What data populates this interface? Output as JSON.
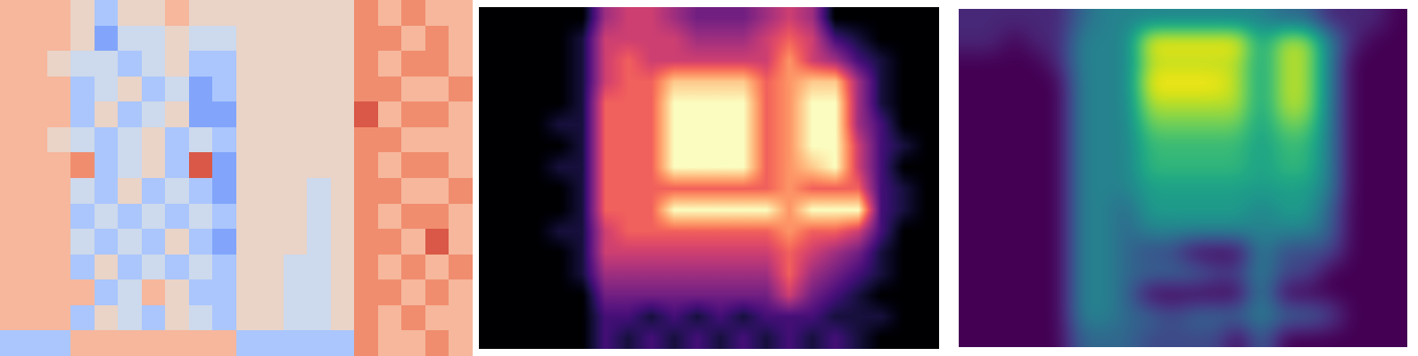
{
  "chart_data": [
    {
      "type": "heatmap",
      "color": "coolwarm",
      "tick_labels": false,
      "value_range": [
        0,
        9
      ],
      "cells": [
        [
          6,
          6,
          6,
          5,
          3,
          5,
          5,
          6,
          5,
          5,
          5,
          5,
          5,
          5,
          5,
          7,
          6,
          7,
          6,
          6
        ],
        [
          6,
          6,
          6,
          5,
          2,
          4,
          4,
          5,
          4,
          4,
          5,
          5,
          5,
          5,
          5,
          7,
          7,
          6,
          7,
          6
        ],
        [
          6,
          6,
          5,
          4,
          4,
          3,
          4,
          5,
          3,
          3,
          5,
          5,
          5,
          5,
          5,
          7,
          6,
          7,
          7,
          6
        ],
        [
          6,
          6,
          6,
          3,
          4,
          5,
          3,
          4,
          2,
          3,
          5,
          5,
          5,
          5,
          5,
          7,
          7,
          6,
          6,
          7
        ],
        [
          6,
          6,
          6,
          3,
          5,
          3,
          4,
          5,
          2,
          2,
          5,
          5,
          5,
          5,
          5,
          8,
          6,
          7,
          7,
          6
        ],
        [
          6,
          6,
          5,
          4,
          3,
          4,
          5,
          3,
          4,
          3,
          5,
          5,
          5,
          5,
          5,
          7,
          7,
          6,
          6,
          6
        ],
        [
          6,
          6,
          6,
          7,
          3,
          4,
          5,
          3,
          8,
          2,
          5,
          5,
          5,
          5,
          5,
          7,
          6,
          7,
          7,
          6
        ],
        [
          6,
          6,
          6,
          4,
          3,
          5,
          3,
          4,
          3,
          2,
          5,
          5,
          5,
          4,
          5,
          7,
          7,
          6,
          6,
          7
        ],
        [
          6,
          6,
          6,
          3,
          4,
          3,
          4,
          3,
          4,
          3,
          5,
          5,
          5,
          4,
          5,
          7,
          6,
          7,
          7,
          6
        ],
        [
          6,
          6,
          6,
          4,
          3,
          4,
          3,
          5,
          3,
          2,
          5,
          5,
          5,
          4,
          5,
          7,
          7,
          6,
          8,
          6
        ],
        [
          6,
          6,
          6,
          3,
          5,
          3,
          4,
          3,
          4,
          3,
          5,
          5,
          4,
          4,
          5,
          7,
          6,
          7,
          6,
          7
        ],
        [
          6,
          6,
          6,
          6,
          3,
          4,
          6,
          5,
          3,
          3,
          5,
          5,
          4,
          4,
          5,
          7,
          7,
          6,
          7,
          6
        ],
        [
          6,
          6,
          6,
          3,
          5,
          4,
          3,
          5,
          4,
          3,
          5,
          5,
          4,
          4,
          5,
          7,
          6,
          7,
          6,
          6
        ],
        [
          3,
          3,
          3,
          6,
          6,
          6,
          6,
          6,
          6,
          6,
          3,
          3,
          3,
          3,
          3,
          7,
          6,
          6,
          7,
          6
        ]
      ]
    },
    {
      "type": "heatmap",
      "color": "magma",
      "tick_labels": false,
      "value_range": [
        0,
        9
      ],
      "cells": [
        [
          0,
          0,
          0,
          0,
          0,
          4,
          5,
          5,
          4,
          3,
          3,
          3,
          4,
          5,
          4,
          0,
          0,
          0,
          0,
          0
        ],
        [
          0,
          0,
          0,
          0,
          1,
          5,
          5,
          5,
          5,
          4,
          4,
          4,
          5,
          6,
          5,
          2,
          1,
          0,
          0,
          0
        ],
        [
          0,
          0,
          0,
          0,
          1,
          5,
          6,
          5,
          5,
          5,
          5,
          5,
          5,
          7,
          5,
          4,
          2,
          1,
          0,
          0
        ],
        [
          0,
          0,
          0,
          0,
          1,
          5,
          6,
          6,
          8,
          8,
          8,
          8,
          6,
          7,
          8,
          8,
          4,
          1,
          0,
          0
        ],
        [
          0,
          0,
          0,
          0,
          1,
          6,
          6,
          6,
          9,
          9,
          9,
          9,
          6,
          7,
          9,
          9,
          4,
          1,
          0,
          0
        ],
        [
          0,
          0,
          0,
          1,
          1,
          6,
          6,
          6,
          9,
          9,
          9,
          9,
          6,
          7,
          9,
          9,
          4,
          2,
          0,
          0
        ],
        [
          0,
          0,
          0,
          0,
          1,
          6,
          6,
          6,
          9,
          9,
          9,
          9,
          6,
          7,
          9,
          9,
          5,
          2,
          1,
          0
        ],
        [
          0,
          0,
          0,
          1,
          1,
          6,
          6,
          6,
          9,
          9,
          9,
          9,
          6,
          7,
          8,
          9,
          5,
          2,
          0,
          0
        ],
        [
          0,
          0,
          0,
          0,
          1,
          6,
          6,
          6,
          6,
          6,
          6,
          6,
          6,
          7,
          6,
          6,
          6,
          2,
          1,
          0
        ],
        [
          0,
          0,
          0,
          0,
          1,
          6,
          6,
          6,
          9,
          9,
          9,
          9,
          9,
          7,
          9,
          9,
          9,
          2,
          1,
          0
        ],
        [
          0,
          0,
          0,
          1,
          1,
          5,
          6,
          6,
          6,
          6,
          6,
          6,
          6,
          7,
          6,
          6,
          5,
          2,
          0,
          0
        ],
        [
          0,
          0,
          0,
          0,
          1,
          5,
          5,
          5,
          5,
          5,
          5,
          5,
          5,
          6,
          5,
          4,
          3,
          1,
          0,
          0
        ],
        [
          0,
          0,
          0,
          0,
          1,
          4,
          4,
          4,
          4,
          4,
          4,
          4,
          4,
          6,
          4,
          3,
          2,
          1,
          0,
          0
        ],
        [
          0,
          0,
          0,
          0,
          0,
          3,
          3,
          3,
          3,
          3,
          3,
          3,
          3,
          5,
          3,
          2,
          1,
          0,
          0,
          0
        ],
        [
          0,
          0,
          0,
          0,
          0,
          2,
          2,
          1,
          2,
          1,
          2,
          1,
          2,
          2,
          2,
          1,
          1,
          1,
          0,
          0
        ],
        [
          0,
          0,
          0,
          0,
          0,
          2,
          1,
          2,
          1,
          2,
          1,
          2,
          1,
          2,
          1,
          2,
          1,
          0,
          0,
          0
        ]
      ]
    },
    {
      "type": "heatmap",
      "color": "viridis",
      "tick_labels": false,
      "value_range": [
        0,
        9
      ],
      "cells": [
        [
          1,
          1,
          1,
          1,
          1,
          3,
          4,
          4,
          4,
          4,
          4,
          4,
          4,
          4,
          3,
          3,
          1,
          1,
          1,
          0
        ],
        [
          1,
          1,
          0,
          1,
          1,
          4,
          4,
          4,
          9,
          9,
          9,
          9,
          9,
          5,
          8,
          8,
          4,
          1,
          0,
          0
        ],
        [
          0,
          0,
          0,
          0,
          1,
          4,
          4,
          4,
          8,
          8,
          8,
          8,
          8,
          5,
          8,
          8,
          4,
          0,
          0,
          0
        ],
        [
          0,
          0,
          0,
          0,
          0,
          4,
          4,
          4,
          9,
          9,
          9,
          9,
          8,
          5,
          8,
          8,
          4,
          0,
          0,
          0
        ],
        [
          0,
          0,
          0,
          0,
          0,
          4,
          4,
          4,
          8,
          8,
          8,
          8,
          8,
          5,
          8,
          8,
          4,
          0,
          0,
          0
        ],
        [
          0,
          0,
          0,
          0,
          0,
          4,
          4,
          4,
          7,
          7,
          7,
          7,
          7,
          5,
          7,
          7,
          4,
          0,
          0,
          0
        ],
        [
          0,
          0,
          0,
          0,
          0,
          4,
          4,
          4,
          6,
          6,
          6,
          6,
          6,
          5,
          6,
          6,
          4,
          0,
          0,
          0
        ],
        [
          0,
          0,
          0,
          0,
          0,
          4,
          4,
          4,
          6,
          6,
          6,
          6,
          6,
          5,
          6,
          6,
          4,
          0,
          0,
          0
        ],
        [
          0,
          0,
          0,
          0,
          0,
          4,
          4,
          4,
          5,
          5,
          5,
          5,
          5,
          5,
          5,
          5,
          4,
          0,
          0,
          0
        ],
        [
          0,
          0,
          0,
          0,
          0,
          4,
          4,
          3,
          5,
          5,
          5,
          5,
          5,
          4,
          5,
          5,
          3,
          0,
          0,
          0
        ],
        [
          0,
          0,
          0,
          0,
          0,
          4,
          4,
          3,
          4,
          4,
          4,
          4,
          4,
          4,
          4,
          4,
          3,
          0,
          0,
          0
        ],
        [
          0,
          0,
          0,
          0,
          0,
          4,
          4,
          3,
          2,
          2,
          0,
          0,
          0,
          4,
          2,
          2,
          2,
          0,
          0,
          0
        ],
        [
          0,
          0,
          0,
          0,
          0,
          4,
          4,
          3,
          3,
          3,
          3,
          2,
          2,
          4,
          2,
          2,
          0,
          0,
          0,
          0
        ],
        [
          0,
          0,
          0,
          0,
          0,
          4,
          4,
          3,
          0,
          0,
          0,
          0,
          0,
          4,
          0,
          0,
          0,
          0,
          0,
          0
        ],
        [
          0,
          0,
          0,
          0,
          0,
          4,
          4,
          3,
          3,
          2,
          3,
          3,
          3,
          4,
          3,
          3,
          2,
          0,
          0,
          0
        ],
        [
          0,
          0,
          0,
          0,
          0,
          3,
          3,
          3,
          2,
          2,
          2,
          2,
          0,
          3,
          0,
          0,
          0,
          0,
          0,
          0
        ]
      ]
    }
  ]
}
